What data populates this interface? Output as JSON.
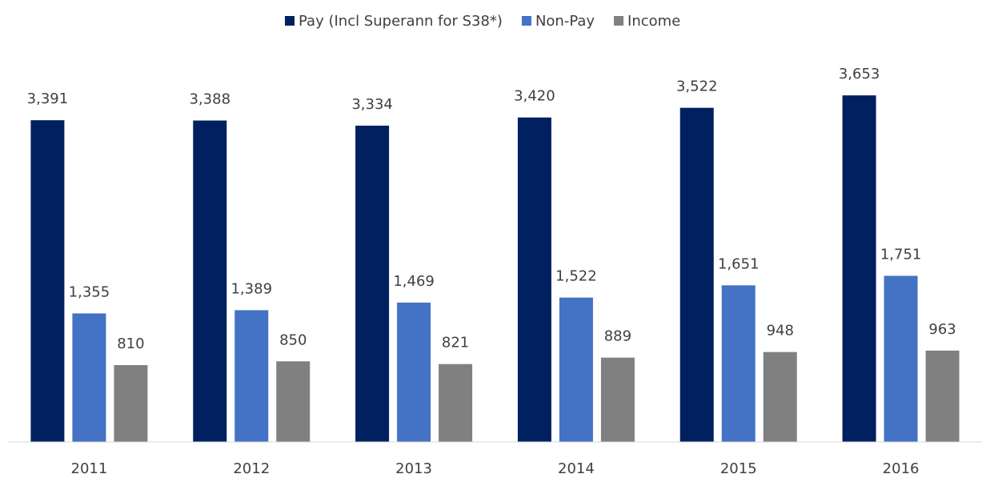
{
  "chart_data": {
    "type": "bar",
    "categories": [
      "2011",
      "2012",
      "2013",
      "2014",
      "2015",
      "2016"
    ],
    "series": [
      {
        "name": "Pay (Incl Superann for S38*)",
        "color": "#002060",
        "values": [
          3391,
          3388,
          3334,
          3420,
          3522,
          3653
        ],
        "value_labels": [
          "3,391",
          "3,388",
          "3,334",
          "3,420",
          "3,522",
          "3,653"
        ]
      },
      {
        "name": "Non-Pay",
        "color": "#4472c4",
        "values": [
          1355,
          1389,
          1469,
          1522,
          1651,
          1751
        ],
        "value_labels": [
          "1,355",
          "1,389",
          "1,469",
          "1,522",
          "1,651",
          "1,751"
        ]
      },
      {
        "name": "Income",
        "color": "#808080",
        "values": [
          810,
          850,
          821,
          889,
          948,
          963
        ],
        "value_labels": [
          "810",
          "850",
          "821",
          "889",
          "948",
          "963"
        ]
      }
    ],
    "ylim": [
      0,
      4000
    ],
    "legend": "top"
  }
}
